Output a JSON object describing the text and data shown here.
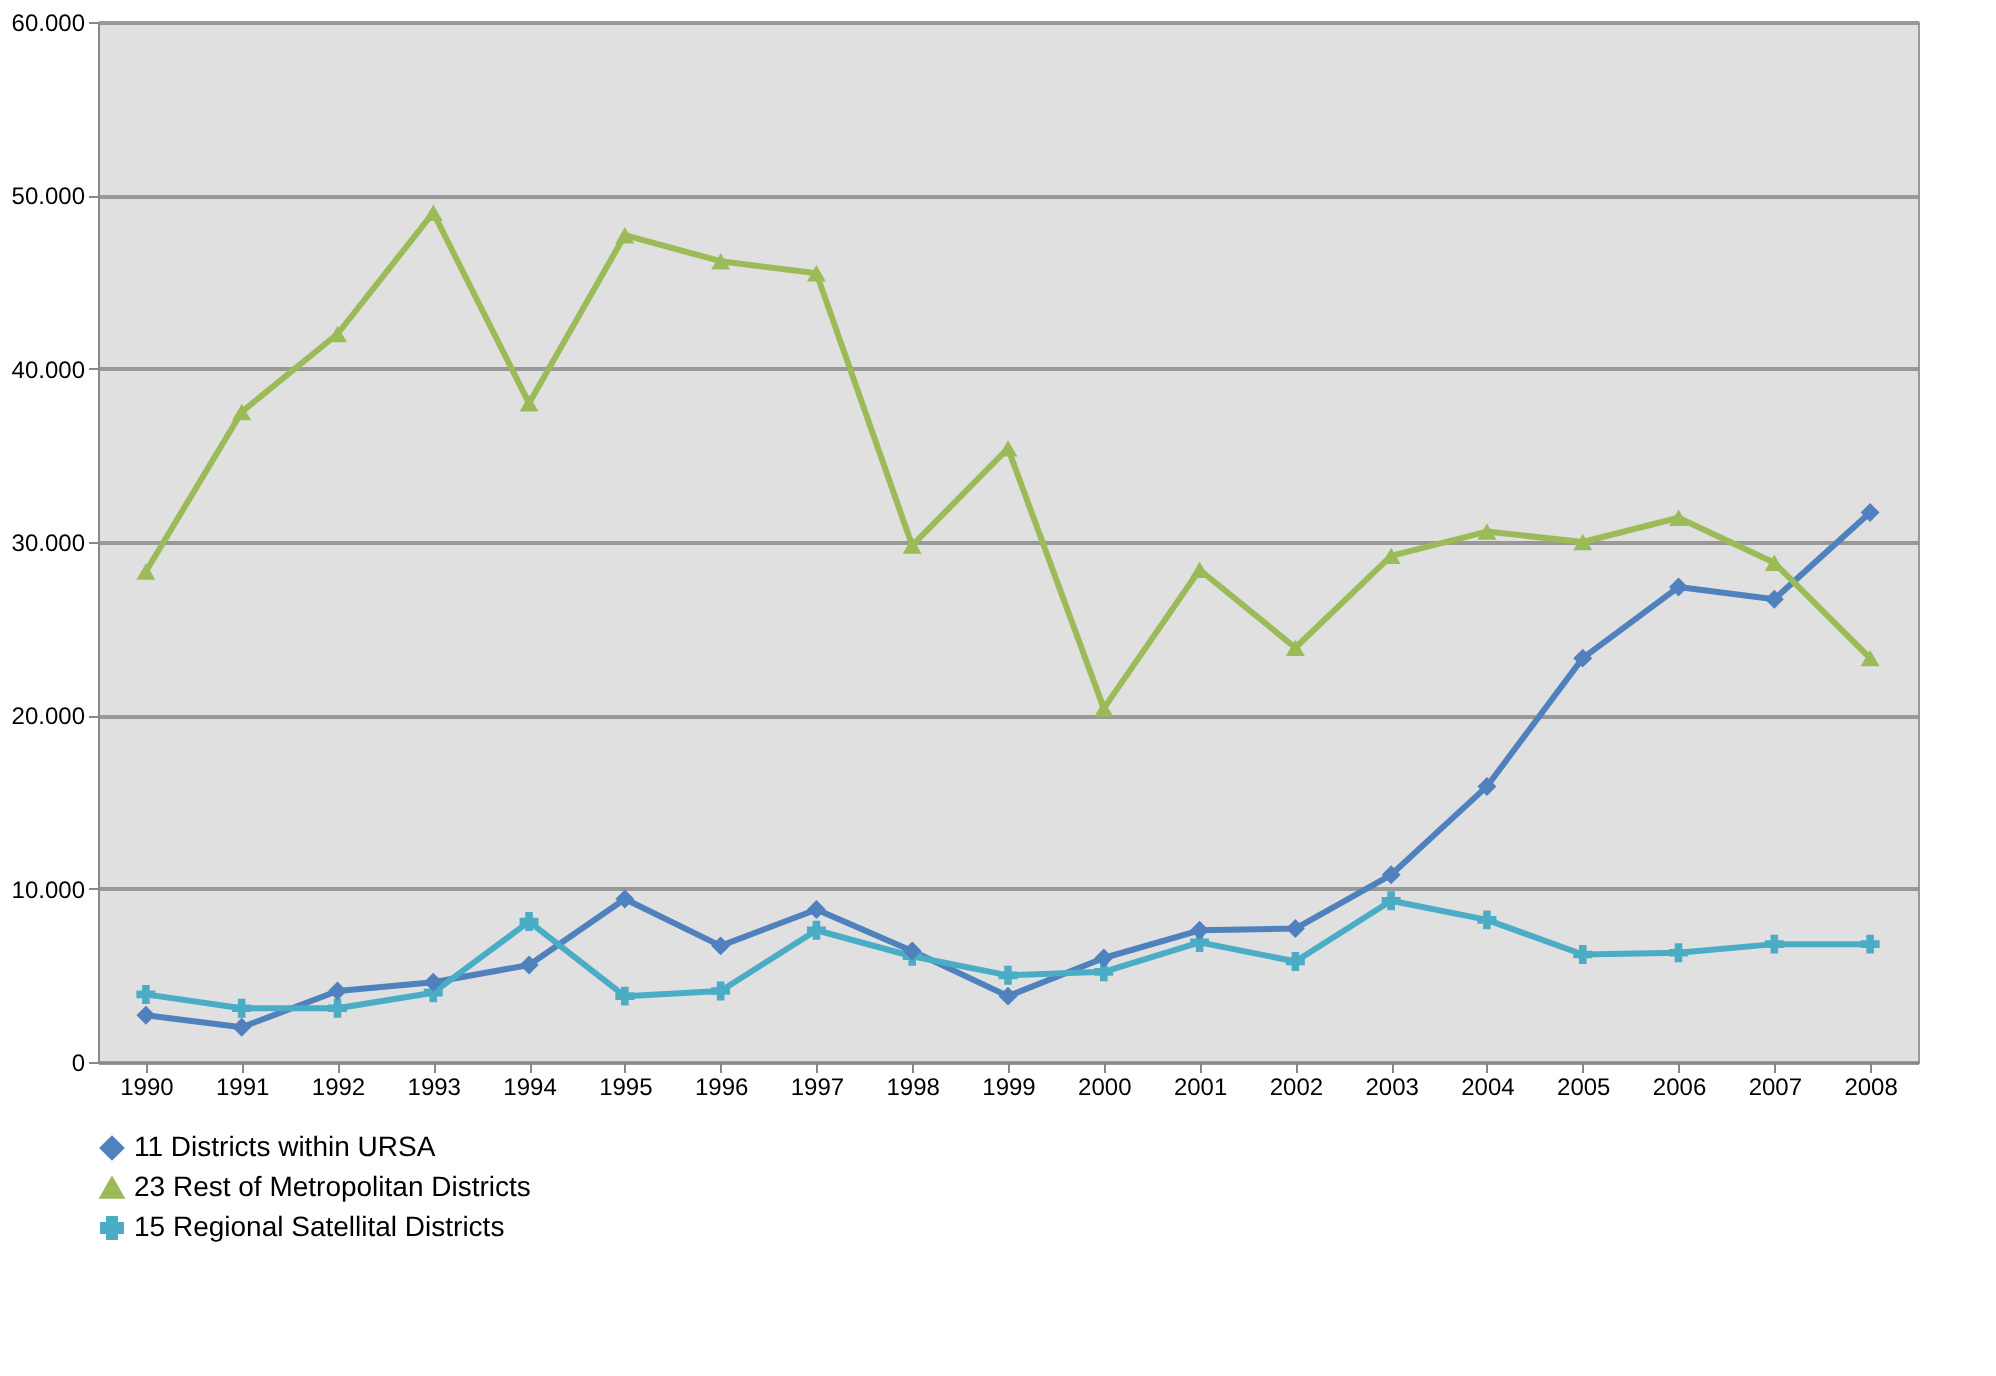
{
  "chart_data": {
    "type": "line",
    "categories": [
      "1990",
      "1991",
      "1992",
      "1993",
      "1994",
      "1995",
      "1996",
      "1997",
      "1998",
      "1999",
      "2000",
      "2001",
      "2002",
      "2003",
      "2004",
      "2005",
      "2006",
      "2007",
      "2008"
    ],
    "series": [
      {
        "name": "11 Districts within URSA",
        "color": "#4f81bd",
        "marker": "diamond",
        "values": [
          2700,
          2000,
          4100,
          4600,
          5600,
          9400,
          6700,
          8800,
          6400,
          3800,
          6000,
          7600,
          7700,
          10800,
          15900,
          23300,
          27400,
          26700,
          31700
        ]
      },
      {
        "name": "23 Rest of Metropolitan Districts",
        "color": "#9bbb59",
        "marker": "triangle",
        "values": [
          28300,
          37500,
          42000,
          49000,
          38000,
          47700,
          46200,
          45500,
          29800,
          35400,
          20400,
          28400,
          23900,
          29200,
          30600,
          30000,
          31400,
          28800,
          23300
        ]
      },
      {
        "name": "15 Regional Satellital Districts",
        "color": "#4bacc6",
        "marker": "cross",
        "values": [
          3900,
          3100,
          3100,
          4000,
          8100,
          3800,
          4100,
          7600,
          6100,
          5000,
          5200,
          6900,
          5800,
          9300,
          8200,
          6200,
          6300,
          6800,
          6800
        ]
      }
    ],
    "ylim": [
      0,
      60000
    ],
    "yticks": [
      0,
      {
        "value": 10000,
        "label": "10.000"
      },
      {
        "value": 20000,
        "label": "20.000"
      },
      {
        "value": 30000,
        "label": "30.000"
      },
      {
        "value": 40000,
        "label": "40.000"
      },
      {
        "value": 50000,
        "label": "50.000"
      },
      {
        "value": 60000,
        "label": "60.000"
      }
    ],
    "grid": "y",
    "legend": "bottom left",
    "line_style": "solid"
  }
}
